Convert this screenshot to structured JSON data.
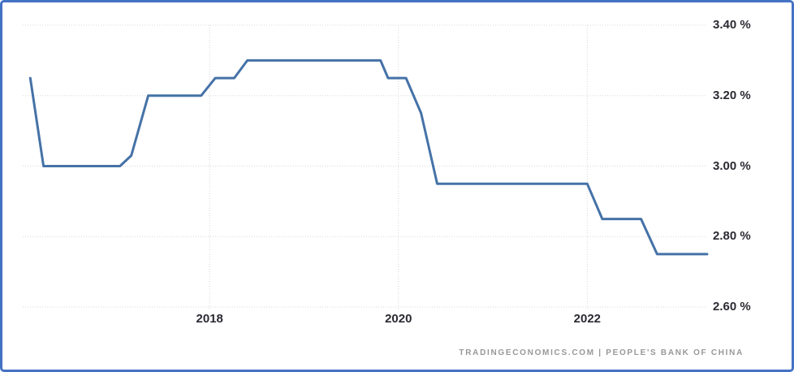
{
  "chart": {
    "attribution": "TRADINGECONOMICS.COM | PEOPLE'S BANK OF CHINA",
    "colors": {
      "picture_border": "#4472C4",
      "line": "#4572A7",
      "gridline": "#D8D8D8",
      "tick_label": "#2B2B33",
      "attribution_text": "#989898",
      "background": "#FFFFFF"
    }
  },
  "chart_data": {
    "type": "line",
    "title": "",
    "xlabel": "",
    "ylabel": "",
    "legend": "none",
    "grid": "dotted",
    "xlim": [
      2016.02,
      2023.27
    ],
    "ylim": [
      2.6,
      3.4
    ],
    "x_ticks": [
      {
        "label": "2018",
        "value": 2018
      },
      {
        "label": "2020",
        "value": 2020
      },
      {
        "label": "2022",
        "value": 2022
      }
    ],
    "y_ticks": [
      {
        "label": "3.40 %",
        "value": 3.4
      },
      {
        "label": "3.20 %",
        "value": 3.2
      },
      {
        "label": "3.00 %",
        "value": 3.0
      },
      {
        "label": "2.80 %",
        "value": 2.8
      },
      {
        "label": "2.60 %",
        "value": 2.6
      }
    ],
    "series": [
      {
        "name": "rate-percent",
        "points": [
          [
            2016.1,
            3.25
          ],
          [
            2016.24,
            3.0
          ],
          [
            2017.05,
            3.0
          ],
          [
            2017.17,
            3.03
          ],
          [
            2017.35,
            3.2
          ],
          [
            2017.91,
            3.2
          ],
          [
            2018.06,
            3.25
          ],
          [
            2018.26,
            3.25
          ],
          [
            2018.4,
            3.3
          ],
          [
            2019.81,
            3.3
          ],
          [
            2019.89,
            3.25
          ],
          [
            2020.08,
            3.25
          ],
          [
            2020.24,
            3.15
          ],
          [
            2020.41,
            2.95
          ],
          [
            2022.0,
            2.95
          ],
          [
            2022.16,
            2.85
          ],
          [
            2022.57,
            2.85
          ],
          [
            2022.74,
            2.75
          ],
          [
            2023.27,
            2.75
          ]
        ]
      }
    ],
    "source": "TRADINGECONOMICS.COM | PEOPLE'S BANK OF CHINA"
  }
}
